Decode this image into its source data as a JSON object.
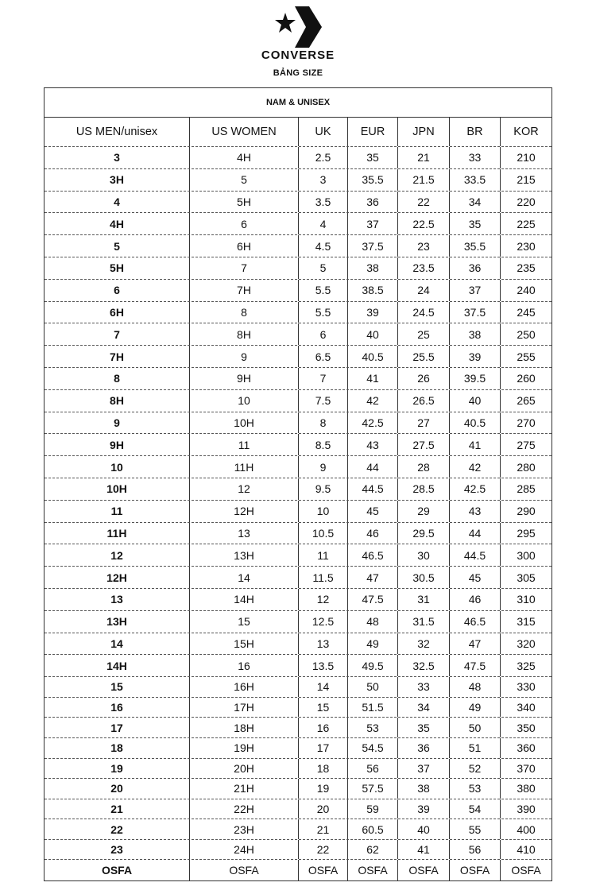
{
  "brand": {
    "name": "CONVERSE",
    "logo_icon": "converse-star-chevron-logo"
  },
  "subtitle": "BẢNG SIZE",
  "table": {
    "title": "NAM & UNISEX",
    "columns": [
      "US MEN/unisex",
      "US WOMEN",
      "UK",
      "EUR",
      "JPN",
      "BR",
      "KOR"
    ],
    "rows": [
      [
        "3",
        "4H",
        "2.5",
        "35",
        "21",
        "33",
        "210"
      ],
      [
        "3H",
        "5",
        "3",
        "35.5",
        "21.5",
        "33.5",
        "215"
      ],
      [
        "4",
        "5H",
        "3.5",
        "36",
        "22",
        "34",
        "220"
      ],
      [
        "4H",
        "6",
        "4",
        "37",
        "22.5",
        "35",
        "225"
      ],
      [
        "5",
        "6H",
        "4.5",
        "37.5",
        "23",
        "35.5",
        "230"
      ],
      [
        "5H",
        "7",
        "5",
        "38",
        "23.5",
        "36",
        "235"
      ],
      [
        "6",
        "7H",
        "5.5",
        "38.5",
        "24",
        "37",
        "240"
      ],
      [
        "6H",
        "8",
        "5.5",
        "39",
        "24.5",
        "37.5",
        "245"
      ],
      [
        "7",
        "8H",
        "6",
        "40",
        "25",
        "38",
        "250"
      ],
      [
        "7H",
        "9",
        "6.5",
        "40.5",
        "25.5",
        "39",
        "255"
      ],
      [
        "8",
        "9H",
        "7",
        "41",
        "26",
        "39.5",
        "260"
      ],
      [
        "8H",
        "10",
        "7.5",
        "42",
        "26.5",
        "40",
        "265"
      ],
      [
        "9",
        "10H",
        "8",
        "42.5",
        "27",
        "40.5",
        "270"
      ],
      [
        "9H",
        "11",
        "8.5",
        "43",
        "27.5",
        "41",
        "275"
      ],
      [
        "10",
        "11H",
        "9",
        "44",
        "28",
        "42",
        "280"
      ],
      [
        "10H",
        "12",
        "9.5",
        "44.5",
        "28.5",
        "42.5",
        "285"
      ],
      [
        "11",
        "12H",
        "10",
        "45",
        "29",
        "43",
        "290"
      ],
      [
        "11H",
        "13",
        "10.5",
        "46",
        "29.5",
        "44",
        "295"
      ],
      [
        "12",
        "13H",
        "11",
        "46.5",
        "30",
        "44.5",
        "300"
      ],
      [
        "12H",
        "14",
        "11.5",
        "47",
        "30.5",
        "45",
        "305"
      ],
      [
        "13",
        "14H",
        "12",
        "47.5",
        "31",
        "46",
        "310"
      ],
      [
        "13H",
        "15",
        "12.5",
        "48",
        "31.5",
        "46.5",
        "315"
      ],
      [
        "14",
        "15H",
        "13",
        "49",
        "32",
        "47",
        "320"
      ],
      [
        "14H",
        "16",
        "13.5",
        "49.5",
        "32.5",
        "47.5",
        "325"
      ],
      [
        "15",
        "16H",
        "14",
        "50",
        "33",
        "48",
        "330"
      ],
      [
        "16",
        "17H",
        "15",
        "51.5",
        "34",
        "49",
        "340"
      ],
      [
        "17",
        "18H",
        "16",
        "53",
        "35",
        "50",
        "350"
      ],
      [
        "18",
        "19H",
        "17",
        "54.5",
        "36",
        "51",
        "360"
      ],
      [
        "19",
        "20H",
        "18",
        "56",
        "37",
        "52",
        "370"
      ],
      [
        "20",
        "21H",
        "19",
        "57.5",
        "38",
        "53",
        "380"
      ],
      [
        "21",
        "22H",
        "20",
        "59",
        "39",
        "54",
        "390"
      ],
      [
        "22",
        "23H",
        "21",
        "60.5",
        "40",
        "55",
        "400"
      ],
      [
        "23",
        "24H",
        "22",
        "62",
        "41",
        "56",
        "410"
      ],
      [
        "OSFA",
        "OSFA",
        "OSFA",
        "OSFA",
        "OSFA",
        "OSFA",
        "OSFA"
      ]
    ]
  }
}
